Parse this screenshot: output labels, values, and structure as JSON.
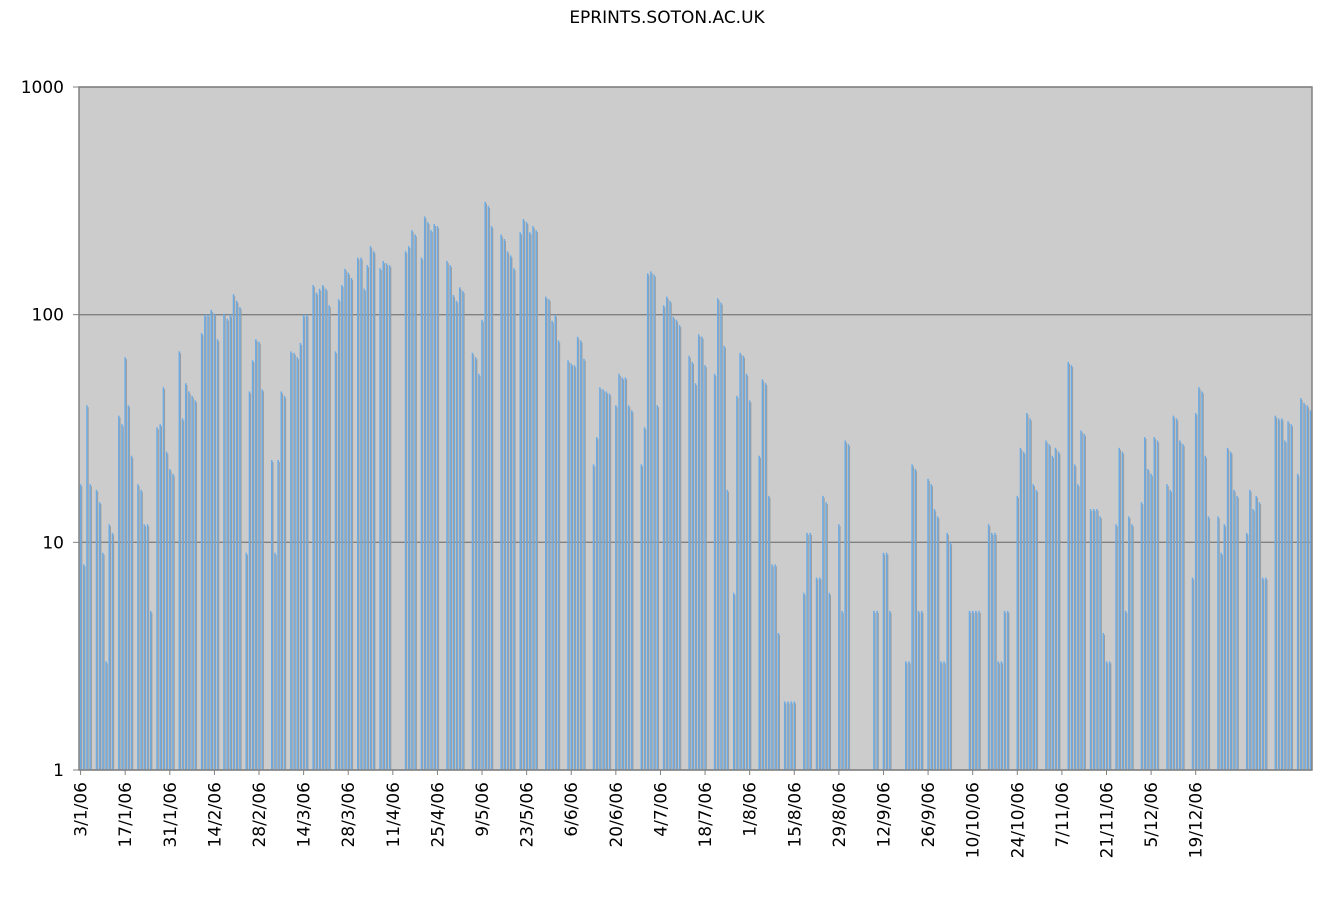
{
  "chart_data": {
    "type": "bar",
    "title": "EPRINTS.SOTON.AC.UK",
    "xlabel": "",
    "ylabel": "",
    "y_scale": "log",
    "ylim": [
      1,
      1000
    ],
    "y_ticks": [
      "1",
      "10",
      "100",
      "1000"
    ],
    "y_tick_values": [
      1,
      10,
      100,
      1000
    ],
    "grid": "horizontal major lines",
    "legend": "none",
    "plot_background": "#cccccc",
    "bar_color": "#6aabe6",
    "x_tick_labels": [
      "3/1/06",
      "17/1/06",
      "31/1/06",
      "14/2/06",
      "28/2/06",
      "14/3/06",
      "28/3/06",
      "11/4/06",
      "25/4/06",
      "9/5/06",
      "23/5/06",
      "6/6/06",
      "20/6/06",
      "4/7/06",
      "18/7/06",
      "1/8/06",
      "15/8/06",
      "29/8/06",
      "12/9/06",
      "26/9/06",
      "10/10/06",
      "24/10/06",
      "7/11/06",
      "21/11/06",
      "5/12/06",
      "19/12/06"
    ],
    "x_start_date": "3/1/06",
    "x_tick_interval_days": 14,
    "values": [
      18,
      8,
      40,
      18,
      0,
      17,
      15,
      9,
      3,
      12,
      11,
      0,
      36,
      33,
      65,
      40,
      24,
      0,
      18,
      17,
      12,
      12,
      5,
      0,
      32,
      33,
      48,
      25,
      21,
      20,
      0,
      69,
      35,
      50,
      46,
      44,
      42,
      0,
      83,
      100,
      100,
      105,
      101,
      78,
      0,
      101,
      96,
      100,
      123,
      115,
      108,
      0,
      9,
      46,
      63,
      78,
      76,
      47,
      0,
      0,
      23,
      9,
      23,
      46,
      44,
      0,
      69,
      68,
      65,
      75,
      100,
      100,
      0,
      135,
      125,
      130,
      135,
      130,
      110,
      0,
      69,
      117,
      135,
      159,
      153,
      145,
      0,
      178,
      178,
      130,
      165,
      200,
      190,
      0,
      160,
      172,
      168,
      165,
      0,
      0,
      0,
      0,
      190,
      200,
      235,
      225,
      0,
      178,
      270,
      255,
      235,
      250,
      245,
      0,
      0,
      172,
      165,
      122,
      115,
      132,
      127,
      0,
      0,
      68,
      65,
      55,
      95,
      313,
      300,
      245,
      0,
      0,
      225,
      215,
      190,
      182,
      160,
      0,
      230,
      263,
      255,
      230,
      245,
      235,
      0,
      0,
      120,
      117,
      94,
      100,
      77,
      0,
      0,
      63,
      61,
      60,
      80,
      77,
      64,
      0,
      0,
      22,
      29,
      48,
      47,
      46,
      45,
      0,
      40,
      55,
      53,
      53,
      40,
      38,
      0,
      0,
      22,
      32,
      152,
      155,
      150,
      40,
      0,
      110,
      120,
      115,
      98,
      95,
      90,
      0,
      0,
      66,
      62,
      50,
      82,
      80,
      60,
      0,
      0,
      55,
      118,
      113,
      73,
      17,
      0,
      6,
      44,
      68,
      66,
      55,
      42,
      0,
      0,
      24,
      52,
      50,
      16,
      8,
      8,
      4,
      0,
      2,
      2,
      2,
      2,
      0,
      0,
      6,
      11,
      11,
      0,
      7,
      7,
      16,
      15,
      6,
      0,
      0,
      12,
      5,
      28,
      27,
      0,
      0,
      0,
      0,
      0,
      0,
      0,
      5,
      5,
      0,
      9,
      9,
      5,
      0,
      0,
      0,
      0,
      3,
      3,
      22,
      21,
      5,
      5,
      0,
      19,
      18,
      14,
      13,
      3,
      3,
      11,
      10,
      0,
      0,
      0,
      0,
      0,
      5,
      5,
      5,
      5,
      0,
      0,
      12,
      11,
      11,
      3,
      3,
      5,
      5,
      0,
      0,
      16,
      26,
      25,
      37,
      35,
      18,
      17,
      0,
      0,
      28,
      27,
      24,
      26,
      25,
      0,
      0,
      62,
      60,
      22,
      18,
      31,
      30,
      0,
      14,
      14,
      14,
      13,
      4,
      3,
      3,
      0,
      12,
      26,
      25,
      5,
      13,
      12,
      0,
      0,
      15,
      29,
      21,
      20,
      29,
      28,
      0,
      0,
      18,
      17,
      36,
      35,
      28,
      27,
      0,
      0,
      7,
      37,
      48,
      46,
      24,
      13,
      0,
      0,
      13,
      9,
      12,
      26,
      25,
      17,
      16,
      0,
      0,
      11,
      17,
      14,
      16,
      15,
      7,
      7,
      0,
      0,
      36,
      35,
      35,
      28,
      34,
      33,
      0,
      20,
      43,
      41,
      40,
      38
    ]
  }
}
